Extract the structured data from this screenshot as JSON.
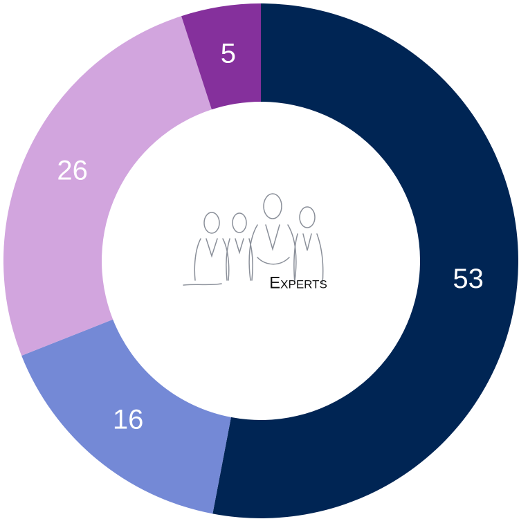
{
  "chart_data": {
    "type": "donut",
    "values": [
      53,
      16,
      26,
      5
    ],
    "colors": [
      "#002554",
      "#7489d6",
      "#d2a5de",
      "#85309c"
    ],
    "center_label": "Experts"
  }
}
